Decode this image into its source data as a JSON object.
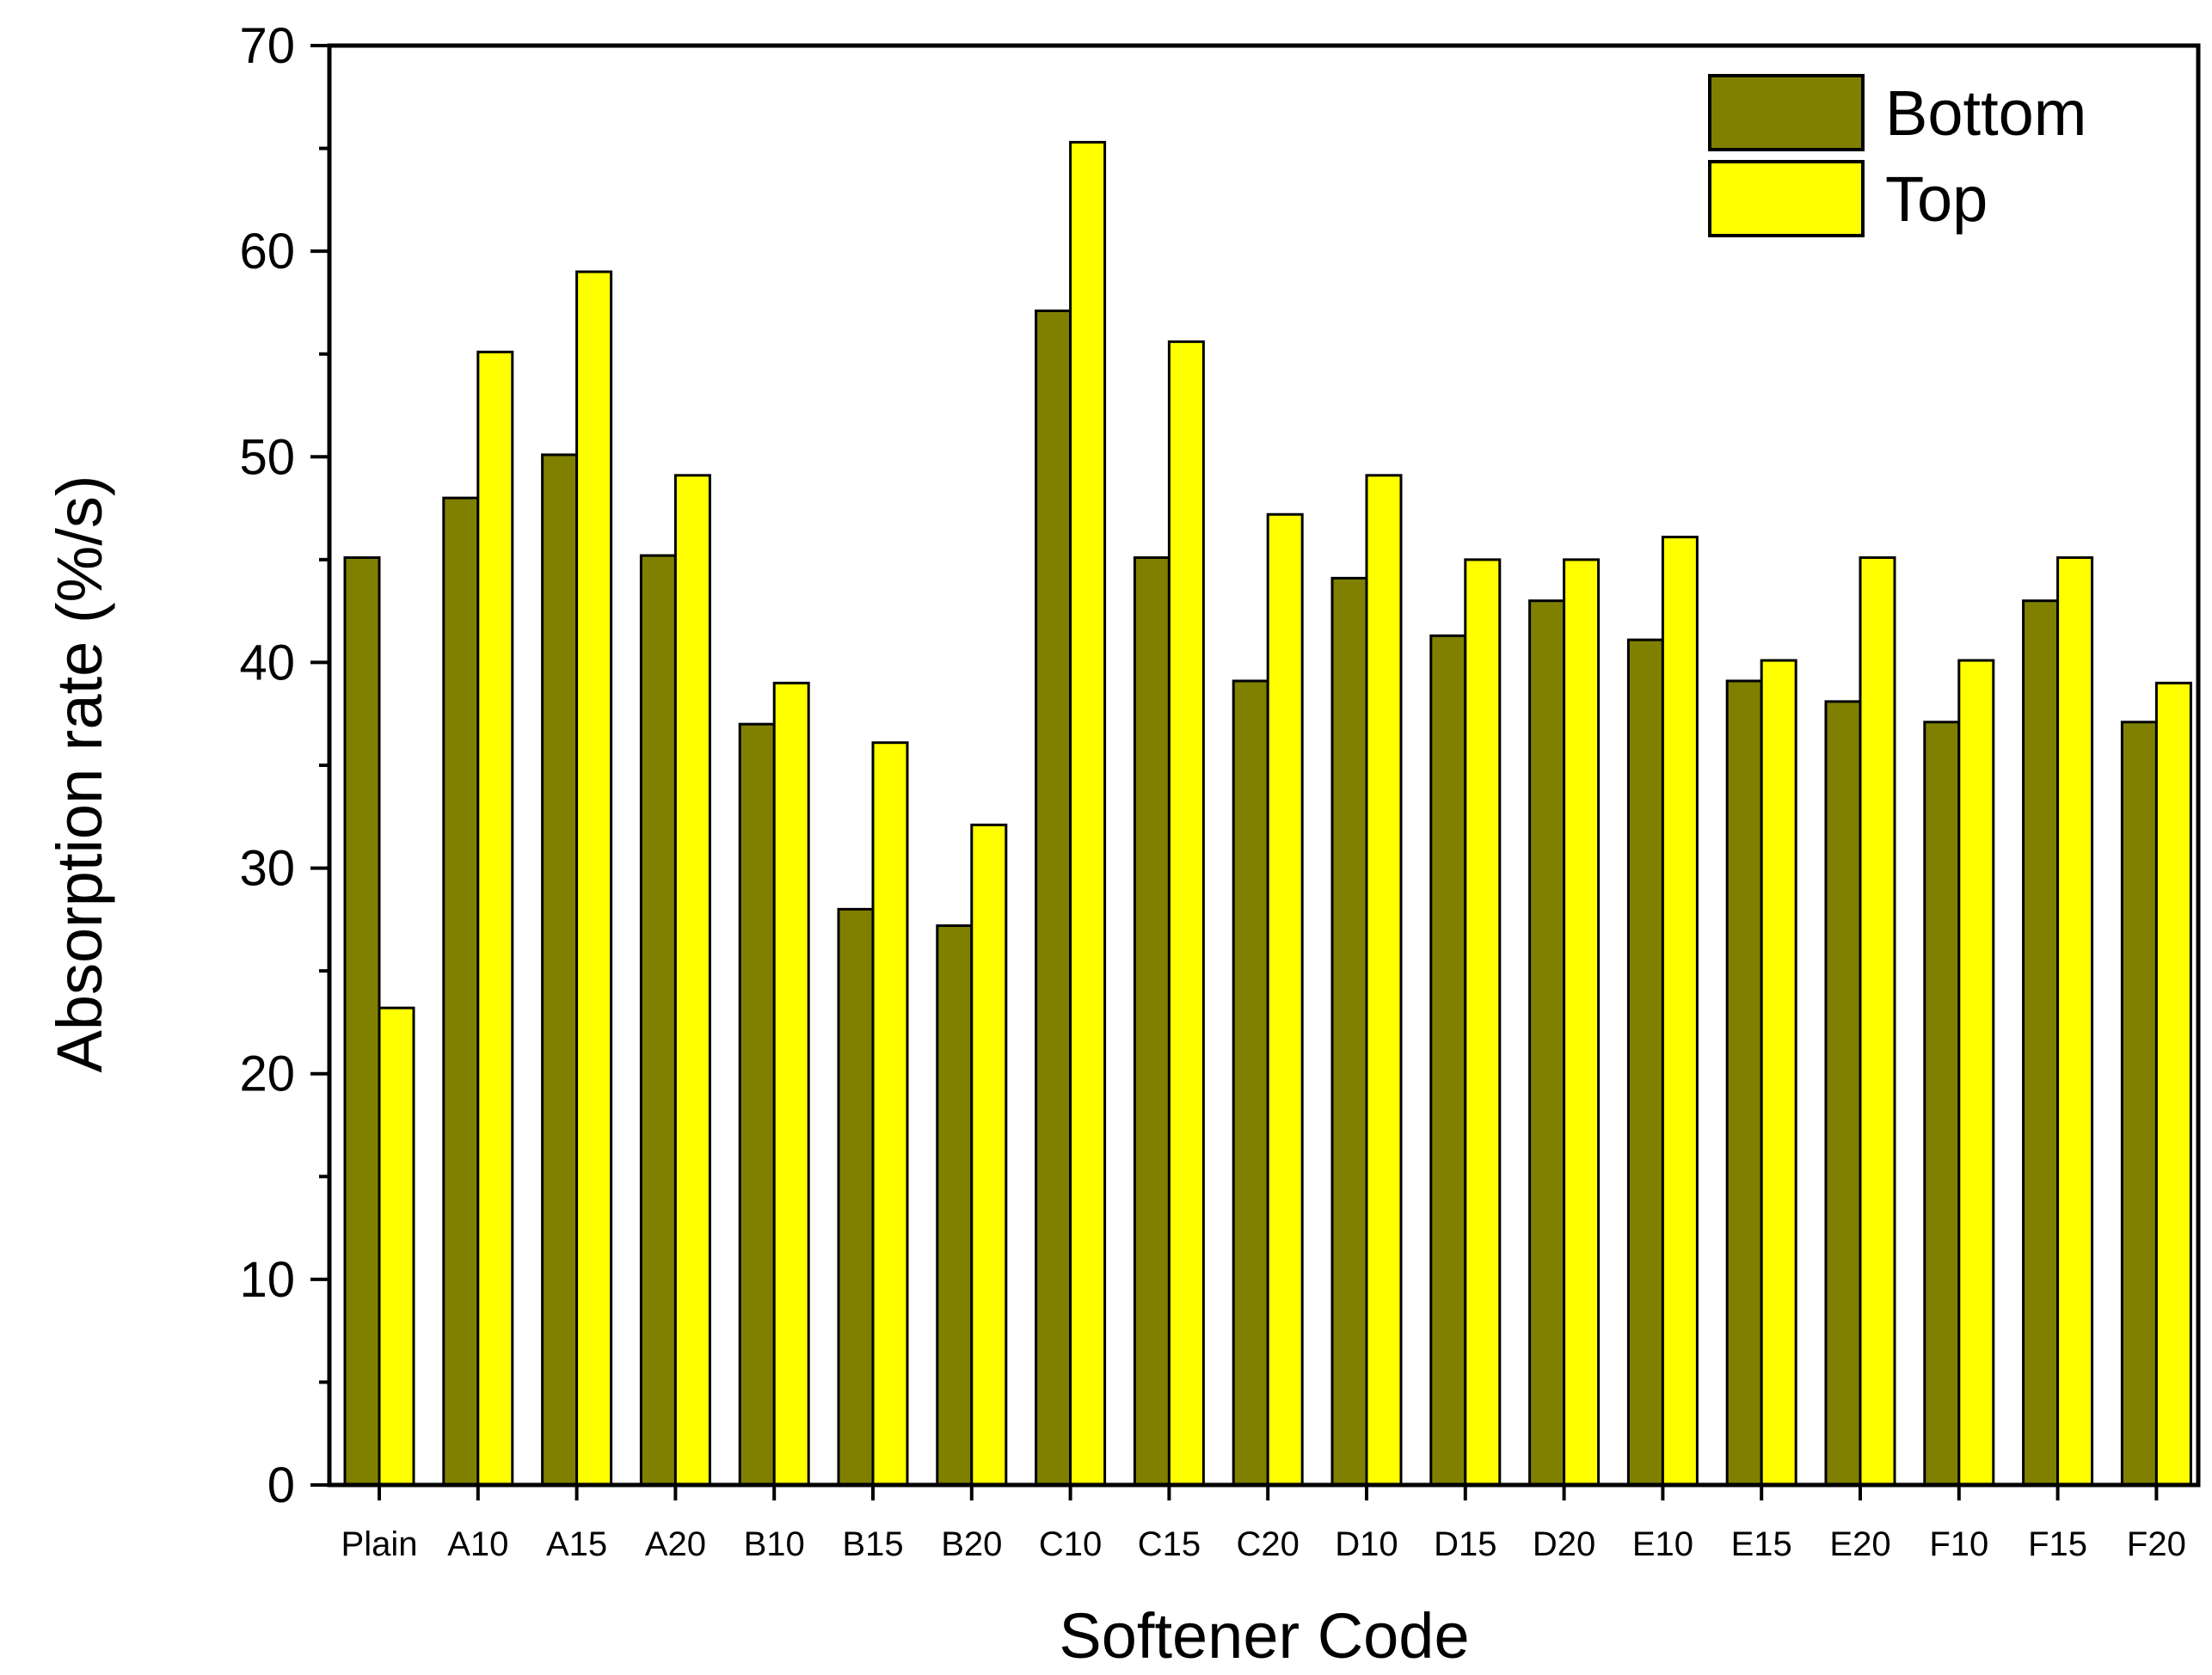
{
  "chart_data": {
    "type": "bar",
    "title": "",
    "xlabel": "Softener Code",
    "ylabel": "Absorption rate (%/s)",
    "ylim": [
      0,
      70
    ],
    "yticks": [
      0,
      10,
      20,
      30,
      40,
      50,
      60,
      70
    ],
    "grid": false,
    "legend_position": "top-right",
    "categories": [
      "Plain",
      "A10",
      "A15",
      "A20",
      "B10",
      "B15",
      "B20",
      "C10",
      "C15",
      "C20",
      "D10",
      "D15",
      "D20",
      "E10",
      "E15",
      "E20",
      "F10",
      "F15",
      "F20"
    ],
    "series": [
      {
        "name": "Bottom",
        "color": "#808000",
        "values": [
          45.1,
          48.0,
          50.1,
          45.2,
          37.0,
          28.0,
          27.2,
          57.1,
          45.1,
          39.1,
          44.1,
          41.3,
          43.0,
          41.1,
          39.1,
          38.1,
          37.1,
          43.0,
          37.1
        ]
      },
      {
        "name": "Top",
        "color": "#ffff00",
        "values": [
          23.2,
          55.1,
          59.0,
          49.1,
          39.0,
          36.1,
          32.1,
          65.3,
          55.6,
          47.2,
          49.1,
          45.0,
          45.0,
          46.1,
          40.1,
          45.1,
          40.1,
          45.1,
          39.0
        ]
      }
    ]
  }
}
